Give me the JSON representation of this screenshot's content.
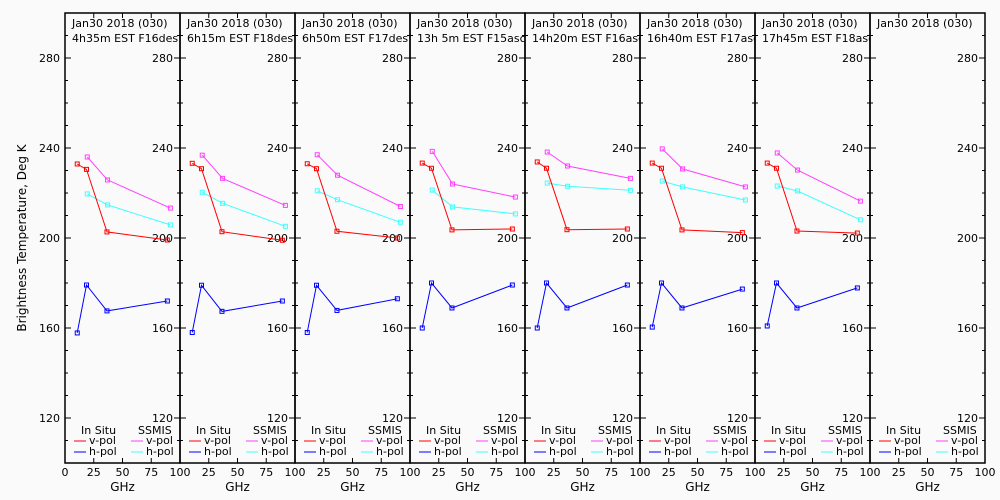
{
  "y_axis_label": "Brightness Temperature, Deg K",
  "x_axis_label": "GHz",
  "legend": {
    "in_situ_title": "In Situ",
    "ssmis_title": "SSMIS",
    "v_pol": "v-pol",
    "h_pol": "h-pol"
  },
  "colors": {
    "in_situ_v": "#ff0000",
    "in_situ_h": "#0000ff",
    "ssmis_v": "#ff40ff",
    "ssmis_h": "#40ffff",
    "frame": "#000000",
    "background": "#fafafa"
  },
  "chart_data": {
    "type": "line",
    "layout": "8 side-by-side panels sharing y axis",
    "xlabel": "GHz",
    "ylabel": "Brightness Temperature, Deg K",
    "xlim": [
      0,
      100
    ],
    "ylim": [
      100,
      300
    ],
    "x_ticks": [
      0,
      25,
      50,
      75,
      100
    ],
    "y_tick_labels": [
      120,
      160,
      200,
      240,
      280
    ],
    "grid": false,
    "legend_placement": "bottom of each panel",
    "in_situ_freqs": [
      10.65,
      18.7,
      36.5,
      89
    ],
    "ssmis_freqs": [
      19.35,
      37,
      91.65
    ],
    "panels": [
      {
        "date": "Jan30 2018 (030)",
        "time": "4h35m EST F16des",
        "in_situ_v": [
          232.9,
          230.5,
          202.7,
          199.1
        ],
        "in_situ_h": [
          157.8,
          179.1,
          167.6,
          172.0
        ],
        "ssmis_v": [
          236.0,
          225.8,
          213.3
        ],
        "ssmis_h": [
          219.6,
          214.7,
          205.8
        ]
      },
      {
        "date": "Jan30 2018 (030)",
        "time": "6h15m EST F18des",
        "in_situ_v": [
          233.2,
          230.8,
          202.8,
          199.0
        ],
        "in_situ_h": [
          158.0,
          179.0,
          167.4,
          172.0
        ],
        "ssmis_v": [
          236.8,
          226.5,
          214.5
        ],
        "ssmis_h": [
          220.3,
          215.4,
          205.2
        ]
      },
      {
        "date": "Jan30 2018 (030)",
        "time": "6h50m EST F17des",
        "in_situ_v": [
          233.0,
          230.8,
          203.0,
          200.0
        ],
        "in_situ_h": [
          158.0,
          179.0,
          167.8,
          173.0
        ],
        "ssmis_v": [
          237.0,
          227.9,
          214.0
        ],
        "ssmis_h": [
          221.0,
          217.0,
          207.0
        ]
      },
      {
        "date": "Jan30 2018 (030)",
        "time": "13h 5m EST F15asc",
        "in_situ_v": [
          233.3,
          231.0,
          203.6,
          204.0
        ],
        "in_situ_h": [
          160.0,
          180.0,
          168.9,
          179.1
        ],
        "ssmis_v": [
          238.5,
          224.0,
          218.2
        ],
        "ssmis_h": [
          221.3,
          213.8,
          210.7
        ]
      },
      {
        "date": "Jan30 2018 (030)",
        "time": "14h20m EST F16asc",
        "in_situ_v": [
          233.8,
          231.0,
          203.7,
          204.0
        ],
        "in_situ_h": [
          160.0,
          180.0,
          168.9,
          179.1
        ],
        "ssmis_v": [
          238.2,
          232.0,
          226.5
        ],
        "ssmis_h": [
          224.4,
          223.0,
          221.2
        ]
      },
      {
        "date": "Jan30 2018 (030)",
        "time": "16h40m EST F17asc",
        "in_situ_v": [
          233.3,
          231.0,
          203.6,
          202.4
        ],
        "in_situ_h": [
          160.4,
          180.0,
          168.9,
          177.3
        ],
        "ssmis_v": [
          239.6,
          230.7,
          222.7
        ],
        "ssmis_h": [
          225.3,
          222.7,
          216.9
        ]
      },
      {
        "date": "Jan30 2018 (030)",
        "time": "17h45m EST F18asc",
        "in_situ_v": [
          233.3,
          231.0,
          203.1,
          202.2
        ],
        "in_situ_h": [
          160.9,
          180.0,
          168.9,
          177.8
        ],
        "ssmis_v": [
          237.8,
          230.2,
          216.4
        ],
        "ssmis_h": [
          223.1,
          220.9,
          208.1
        ]
      },
      {
        "date": "Jan30 2018 (030)",
        "time": "",
        "in_situ_v": [],
        "in_situ_h": [],
        "ssmis_v": [],
        "ssmis_h": []
      }
    ]
  }
}
